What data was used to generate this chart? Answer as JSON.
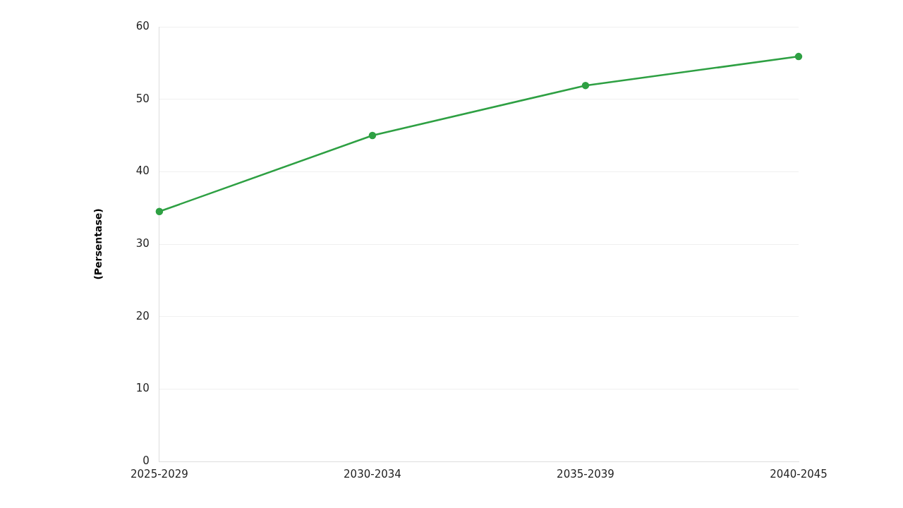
{
  "chart_data": {
    "type": "line",
    "ylabel": "(Persentase)",
    "categories": [
      "2025-2029",
      "2030-2034",
      "2035-2039",
      "2040-2045"
    ],
    "series": [
      {
        "color": "#2ea043",
        "values": [
          34.5,
          45,
          51.9,
          55.9
        ]
      }
    ],
    "ylim": [
      0,
      60
    ],
    "yticks": [
      0,
      10,
      20,
      30,
      40,
      50,
      60
    ],
    "grid": "y",
    "legend": false,
    "marker": "circle",
    "line_style": "solid"
  }
}
